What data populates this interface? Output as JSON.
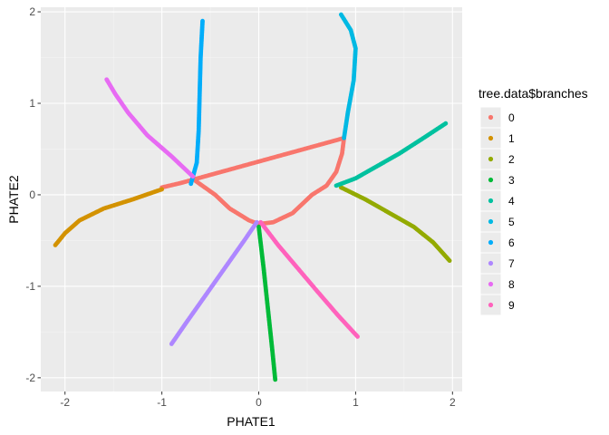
{
  "chart_data": {
    "type": "scatter",
    "title": "",
    "xlabel": "PHATE1",
    "ylabel": "PHATE2",
    "xlim": [
      -2.25,
      2.1
    ],
    "ylim": [
      -2.15,
      2.05
    ],
    "x_ticks": [
      -2,
      -1,
      0,
      1,
      2
    ],
    "y_ticks": [
      -2,
      -1,
      0,
      1,
      2
    ],
    "x_tick_labels": [
      "-2",
      "-1",
      "0",
      "1",
      "2"
    ],
    "y_tick_labels": [
      "-2",
      "-1",
      "0",
      "1",
      "2"
    ],
    "grid": true,
    "legend": {
      "title": "tree.data$branches",
      "placement": "right"
    },
    "series": [
      {
        "name": "0",
        "color": "#F8766D",
        "points": [
          [
            -0.65,
            0.15
          ],
          [
            -0.45,
            0.0
          ],
          [
            -0.3,
            -0.15
          ],
          [
            -0.1,
            -0.28
          ],
          [
            0.0,
            -0.32
          ],
          [
            0.15,
            -0.3
          ],
          [
            0.35,
            -0.2
          ],
          [
            0.55,
            0.0
          ],
          [
            0.7,
            0.1
          ],
          [
            0.8,
            0.25
          ],
          [
            0.86,
            0.45
          ],
          [
            0.88,
            0.62
          ],
          [
            -0.8,
            0.13
          ],
          [
            -1.0,
            0.08
          ]
        ]
      },
      {
        "name": "1",
        "color": "#D39200",
        "points": [
          [
            -1.0,
            0.06
          ],
          [
            -1.3,
            -0.05
          ],
          [
            -1.6,
            -0.15
          ],
          [
            -1.85,
            -0.28
          ],
          [
            -2.0,
            -0.42
          ],
          [
            -2.1,
            -0.55
          ]
        ]
      },
      {
        "name": "2",
        "color": "#93AA00",
        "points": [
          [
            0.85,
            0.08
          ],
          [
            1.1,
            -0.05
          ],
          [
            1.35,
            -0.2
          ],
          [
            1.6,
            -0.35
          ],
          [
            1.8,
            -0.52
          ],
          [
            1.97,
            -0.72
          ]
        ]
      },
      {
        "name": "3",
        "color": "#00BA38",
        "points": [
          [
            0.0,
            -0.35
          ],
          [
            0.05,
            -0.8
          ],
          [
            0.1,
            -1.3
          ],
          [
            0.14,
            -1.7
          ],
          [
            0.17,
            -2.02
          ]
        ]
      },
      {
        "name": "4",
        "color": "#00C19F",
        "points": [
          [
            0.8,
            0.1
          ],
          [
            1.0,
            0.18
          ],
          [
            1.2,
            0.3
          ],
          [
            1.45,
            0.45
          ],
          [
            1.7,
            0.62
          ],
          [
            1.93,
            0.78
          ]
        ]
      },
      {
        "name": "5",
        "color": "#00B9E3",
        "points": [
          [
            0.88,
            0.62
          ],
          [
            0.92,
            0.9
          ],
          [
            0.98,
            1.25
          ],
          [
            1.0,
            1.6
          ],
          [
            0.95,
            1.8
          ],
          [
            0.85,
            1.97
          ]
        ]
      },
      {
        "name": "6",
        "color": "#00ADFA",
        "points": [
          [
            -0.7,
            0.12
          ],
          [
            -0.64,
            0.35
          ],
          [
            -0.62,
            0.7
          ],
          [
            -0.61,
            1.1
          ],
          [
            -0.6,
            1.5
          ],
          [
            -0.58,
            1.9
          ]
        ]
      },
      {
        "name": "7",
        "color": "#AE87FF",
        "points": [
          [
            -0.02,
            -0.3
          ],
          [
            -0.15,
            -0.5
          ],
          [
            -0.35,
            -0.8
          ],
          [
            -0.55,
            -1.1
          ],
          [
            -0.75,
            -1.4
          ],
          [
            -0.9,
            -1.63
          ]
        ]
      },
      {
        "name": "8",
        "color": "#E76BF3",
        "points": [
          [
            -0.68,
            0.2
          ],
          [
            -0.9,
            0.42
          ],
          [
            -1.15,
            0.65
          ],
          [
            -1.35,
            0.9
          ],
          [
            -1.48,
            1.1
          ],
          [
            -1.57,
            1.26
          ]
        ]
      },
      {
        "name": "9",
        "color": "#FF62BC",
        "points": [
          [
            0.02,
            -0.3
          ],
          [
            0.2,
            -0.55
          ],
          [
            0.4,
            -0.8
          ],
          [
            0.6,
            -1.05
          ],
          [
            0.82,
            -1.32
          ],
          [
            1.02,
            -1.55
          ]
        ]
      }
    ]
  }
}
